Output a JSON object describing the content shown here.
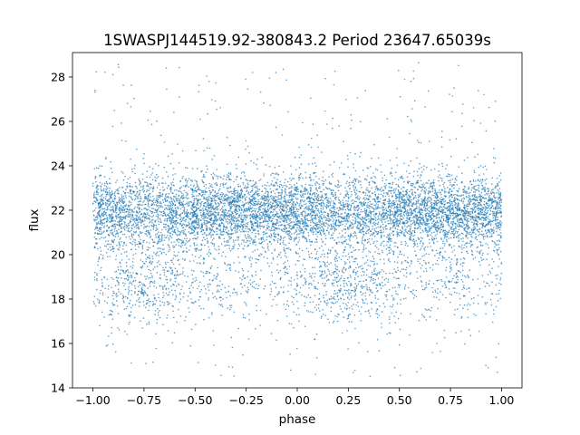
{
  "chart_data": {
    "type": "scatter",
    "title": "1SWASPJ144519.92-380843.2 Period 23647.65039s",
    "xlabel": "phase",
    "ylabel": "flux",
    "xlim": [
      -1.1,
      1.1
    ],
    "ylim": [
      14.0,
      29.1
    ],
    "xticks": [
      -1.0,
      -0.75,
      -0.5,
      -0.25,
      0.0,
      0.25,
      0.5,
      0.75,
      1.0
    ],
    "xtick_labels": [
      "−1.00",
      "−0.75",
      "−0.50",
      "−0.25",
      "0.00",
      "0.25",
      "0.50",
      "0.75",
      "1.00"
    ],
    "yticks": [
      14,
      16,
      18,
      20,
      22,
      24,
      26,
      28
    ],
    "ytick_labels": [
      "14",
      "16",
      "18",
      "20",
      "22",
      "24",
      "26",
      "28"
    ],
    "grid": false,
    "legend": "none",
    "color": "#1f77b4",
    "series": [
      {
        "x_range": [
          -1.0,
          1.0
        ],
        "core_flux_range": [
          19.5,
          24.0
        ],
        "median_flux": 21.9,
        "dip_centers": [
          -0.75,
          0.25
        ],
        "dip_min_flux": 17.5,
        "outlier_flux_range": [
          14.5,
          28.7
        ]
      }
    ]
  }
}
